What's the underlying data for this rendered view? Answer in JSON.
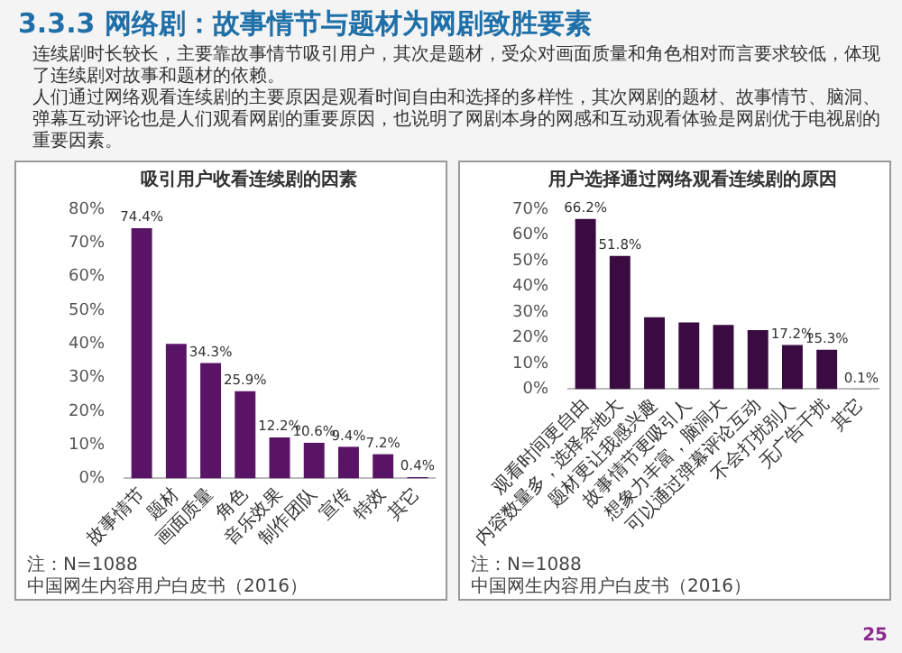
{
  "chart_data": [
    {
      "type": "other",
      "title": "3.3.3 网络剧：故事情节与题材为网剧致胜要素",
      "annotations": [
        "连续剧时长较长，主要靠故事情节吸引用户，其次是题材，受众对画面质量和角色相对而言要求较低，体现了连续剧对故事和题材的依赖。",
        "人们通过网络观看连续剧的主要原因是观看时间自由和选择的多样性，其次网剧的题材、故事情节、脑洞、弹幕互动评论也是人们观看网剧的重要原因，也说明了网剧本身的网感和互动观看体验是网剧优于电视剧的重要因素。",
        "25"
      ]
    },
    {
      "type": "bar",
      "title": "吸引用户收看连续剧的因素",
      "categories": [
        "故事情节",
        "题材",
        "画面质量",
        "角色",
        "音乐效果",
        "制作团队",
        "宣传",
        "特效",
        "其它"
      ],
      "values": [
        74.4,
        40,
        34.3,
        25.9,
        12.2,
        10.6,
        9.4,
        7.2,
        0.4
      ],
      "value_labels": [
        "74.4%",
        null,
        "34.3%",
        "25.9%",
        "12.2%",
        "10.6%",
        "9.4%",
        "7.2%",
        "0.4%"
      ],
      "color": "#5a1466",
      "ylim": [
        0,
        80
      ],
      "yticks": [
        {
          "value": 0,
          "label": "0%"
        },
        {
          "value": 10,
          "label": "10%"
        },
        {
          "value": 20,
          "label": "20%"
        },
        {
          "value": 30,
          "label": "30%"
        },
        {
          "value": 40,
          "label": "40%"
        },
        {
          "value": 50,
          "label": "50%"
        },
        {
          "value": 60,
          "label": "60%"
        },
        {
          "value": 70,
          "label": "70%"
        },
        {
          "value": 80,
          "label": "80%"
        }
      ],
      "grid": false,
      "legend": false,
      "annotations": [
        "注：N=1088",
        "中国网生内容用户白皮书（2016）"
      ]
    },
    {
      "type": "bar",
      "title": "用户选择通过网络观看连续剧的原因",
      "categories": [
        "观看时间更自由",
        "内容数量多，选择余地大",
        "题材更让我感兴趣",
        "故事情节更吸引人",
        "想象力丰富，脑洞大",
        "可以通过弹幕评论互动",
        "不会打扰别人",
        "无广告干扰",
        "其它"
      ],
      "values": [
        66.2,
        51.8,
        28,
        26,
        25,
        23,
        17.2,
        15.3,
        0.1
      ],
      "value_labels": [
        "66.2%",
        "51.8%",
        null,
        null,
        null,
        null,
        "17.2%",
        "15.3%",
        "0.1%"
      ],
      "color": "#3a0b40",
      "ylim": [
        0,
        70
      ],
      "yticks": [
        {
          "value": 0,
          "label": "0%"
        },
        {
          "value": 10,
          "label": "10%"
        },
        {
          "value": 20,
          "label": "20%"
        },
        {
          "value": 30,
          "label": "30%"
        },
        {
          "value": 40,
          "label": "40%"
        },
        {
          "value": 50,
          "label": "50%"
        },
        {
          "value": 60,
          "label": "60%"
        },
        {
          "value": 70,
          "label": "70%"
        }
      ],
      "grid": false,
      "legend": false,
      "annotations": [
        "注：N=1088",
        "中国网生内容用户白皮书（2016）"
      ]
    }
  ]
}
